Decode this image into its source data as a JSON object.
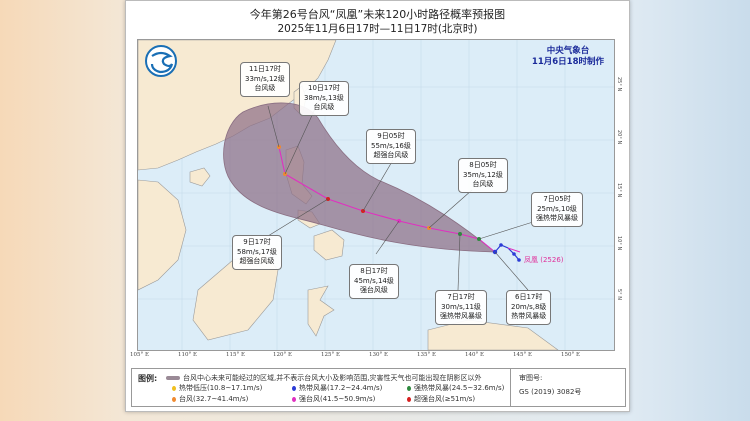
{
  "header": {
    "title": "今年第26号台风“凤凰”未来120小时路径概率预报图",
    "subtitle": "2025年11月6日17时—11日17时(北京时)"
  },
  "agency": {
    "name": "中央气象台",
    "made": "11月6日18时制作",
    "logo_icon": "cma-logo-icon"
  },
  "storm": {
    "name": "凤凰",
    "code": "(2526)"
  },
  "forecast_points": [
    {
      "time": "6日17时",
      "wind": "20m/s,8级",
      "level": "热带风暴级",
      "color": "#2b3bd6"
    },
    {
      "time": "7日05时",
      "wind": "25m/s,10级",
      "level": "强热带风暴级",
      "color": "#2e8a3e"
    },
    {
      "time": "7日17时",
      "wind": "30m/s,11级",
      "level": "强热带风暴级",
      "color": "#2e8a3e"
    },
    {
      "time": "8日05时",
      "wind": "35m/s,12级",
      "level": "台风级",
      "color": "#f08a30"
    },
    {
      "time": "8日17时",
      "wind": "45m/s,14级",
      "level": "强台风级",
      "color": "#e030c0"
    },
    {
      "time": "9日05时",
      "wind": "55m/s,16级",
      "level": "超强台风级",
      "color": "#d62020"
    },
    {
      "time": "9日17时",
      "wind": "58m/s,17级",
      "level": "超强台风级",
      "color": "#d62020"
    },
    {
      "time": "10日17时",
      "wind": "38m/s,13级",
      "level": "台风级",
      "color": "#f08a30"
    },
    {
      "time": "11日17时",
      "wind": "33m/s,12级",
      "level": "台风级",
      "color": "#f08a30"
    }
  ],
  "axes": {
    "longitude": [
      "105° E",
      "110° E",
      "115° E",
      "120° E",
      "125° E",
      "130° E",
      "135° E",
      "140° E",
      "145° E",
      "150° E"
    ],
    "latitude": [
      "25° N",
      "20° N",
      "15° N",
      "10° N",
      "5° N"
    ]
  },
  "legend": {
    "heading": "图例:",
    "cone_desc": "台风中心未来可能经过的区域,并不表示台风大小及影响范围,灾害性天气也可能出现在阴影区以外",
    "items": [
      {
        "label": "热带低压(10.8~17.1m/s)",
        "color": "#f0c020"
      },
      {
        "label": "热带风暴(17.2~24.4m/s)",
        "color": "#2b3bd6"
      },
      {
        "label": "强热带风暴(24.5~32.6m/s)",
        "color": "#2e8a3e"
      },
      {
        "label": "台风(32.7~41.4m/s)",
        "color": "#f08a30"
      },
      {
        "label": "强台风(41.5~50.9m/s)",
        "color": "#e030c0"
      },
      {
        "label": "超强台风(≥51m/s)",
        "color": "#d62020"
      }
    ],
    "review_label": "审图号:",
    "review_no": "GS (2019) 3082号"
  },
  "colors": {
    "cone": "#8e6f86",
    "land": "#f7ead2",
    "sea": "#dcedf8",
    "track": "#e030c0"
  }
}
